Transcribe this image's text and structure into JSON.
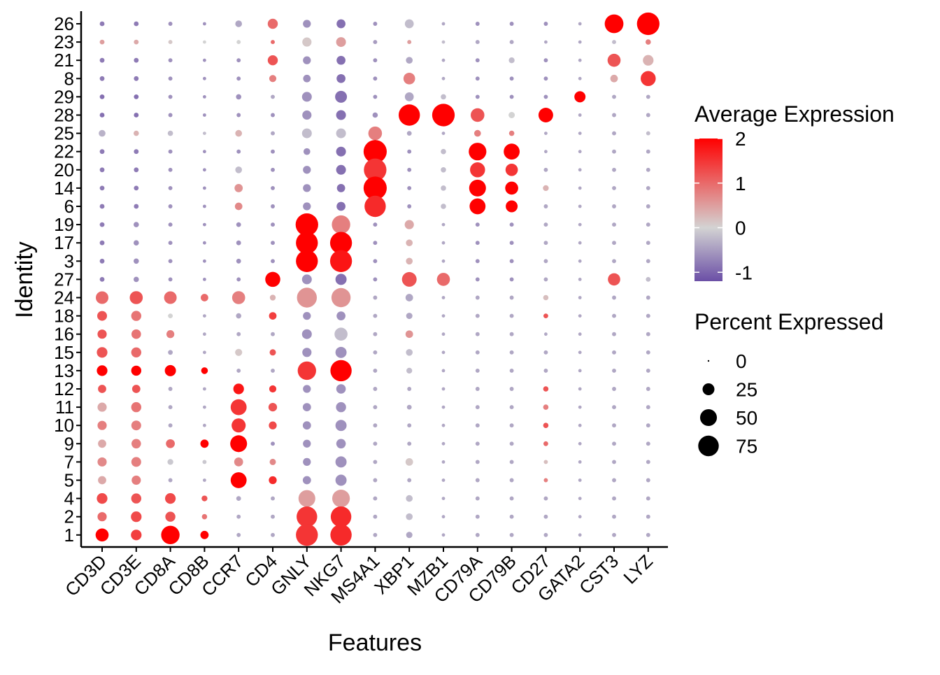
{
  "chart_data": {
    "type": "dot",
    "xlabel": "Features",
    "ylabel": "Identity",
    "features": [
      "CD3D",
      "CD3E",
      "CD8A",
      "CD8B",
      "CCR7",
      "CD4",
      "GNLY",
      "NKG7",
      "MS4A1",
      "XBP1",
      "MZB1",
      "CD79A",
      "CD79B",
      "CD27",
      "GATA2",
      "CST3",
      "LYZ"
    ],
    "identities": [
      "26",
      "23",
      "21",
      "8",
      "29",
      "28",
      "25",
      "22",
      "20",
      "14",
      "6",
      "19",
      "17",
      "3",
      "27",
      "24",
      "18",
      "16",
      "15",
      "13",
      "12",
      "11",
      "10",
      "9",
      "7",
      "5",
      "4",
      "2",
      "1"
    ],
    "avg_expression": [
      [
        -0.8,
        -0.8,
        -0.6,
        -0.6,
        -0.4,
        1.0,
        -0.6,
        -0.9,
        -0.6,
        -0.2,
        -0.4,
        -0.6,
        -0.6,
        -0.6,
        -0.4,
        2.0,
        2.0
      ],
      [
        0.5,
        0.4,
        0.1,
        0.0,
        0.0,
        1.0,
        0.1,
        0.5,
        -0.5,
        0.5,
        -0.2,
        -0.4,
        -0.4,
        -0.4,
        -0.4,
        -0.2,
        0.8
      ],
      [
        -0.8,
        -0.8,
        -0.6,
        -0.6,
        -0.6,
        1.2,
        -0.6,
        -0.9,
        -0.6,
        -0.4,
        -0.4,
        -0.6,
        -0.2,
        -0.6,
        -0.4,
        1.2,
        0.3
      ],
      [
        -0.8,
        -0.8,
        -0.6,
        -0.6,
        -0.6,
        0.8,
        -0.6,
        -0.9,
        -0.6,
        0.8,
        -0.4,
        -0.6,
        -0.6,
        -0.6,
        -0.4,
        0.4,
        1.5
      ],
      [
        -0.9,
        -0.9,
        -0.6,
        -0.6,
        -0.6,
        -0.4,
        -0.6,
        -0.9,
        -0.6,
        -0.4,
        -0.2,
        -0.6,
        -0.6,
        -0.6,
        2.0,
        -0.4,
        -0.4
      ],
      [
        -0.9,
        -0.9,
        -0.6,
        -0.6,
        -0.6,
        -0.6,
        -0.6,
        -0.9,
        -0.6,
        2.0,
        2.0,
        1.2,
        0.0,
        2.0,
        -0.4,
        -0.4,
        -0.4
      ],
      [
        -0.3,
        0.3,
        -0.2,
        -0.2,
        0.3,
        -0.4,
        -0.2,
        -0.2,
        0.8,
        -0.4,
        -0.4,
        0.8,
        0.8,
        -0.4,
        -0.4,
        -0.4,
        -0.2
      ],
      [
        -0.8,
        -0.8,
        -0.6,
        -0.6,
        -0.6,
        -0.6,
        -0.6,
        -0.9,
        2.0,
        -0.6,
        -0.2,
        2.0,
        2.0,
        -0.4,
        -0.4,
        -0.4,
        -0.4
      ],
      [
        -0.8,
        -0.8,
        -0.6,
        -0.6,
        -0.2,
        -0.6,
        -0.6,
        -0.9,
        1.5,
        -0.6,
        -0.2,
        1.5,
        1.5,
        -0.4,
        -0.4,
        -0.4,
        -0.4
      ],
      [
        -0.8,
        -0.8,
        -0.6,
        -0.6,
        0.6,
        -0.6,
        -0.6,
        -0.9,
        2.0,
        -0.6,
        -0.2,
        2.0,
        2.0,
        0.3,
        -0.4,
        -0.4,
        -0.4
      ],
      [
        -0.8,
        -0.8,
        -0.6,
        -0.6,
        0.7,
        -0.6,
        -0.6,
        -0.9,
        1.6,
        -0.6,
        -0.2,
        2.0,
        2.0,
        -0.4,
        -0.4,
        -0.4,
        -0.4
      ],
      [
        -0.8,
        -0.6,
        -0.6,
        -0.6,
        -0.6,
        -0.6,
        2.0,
        0.8,
        -0.6,
        0.4,
        -0.4,
        -0.6,
        -0.6,
        -0.4,
        -0.4,
        -0.4,
        -0.4
      ],
      [
        -0.8,
        -0.6,
        -0.6,
        -0.6,
        -0.6,
        -0.6,
        2.0,
        2.0,
        -0.6,
        0.3,
        -0.4,
        -0.6,
        -0.6,
        -0.4,
        -0.4,
        -0.4,
        -0.4
      ],
      [
        -0.8,
        -0.6,
        -0.6,
        -0.6,
        -0.6,
        -0.6,
        2.0,
        1.8,
        -0.6,
        0.3,
        -0.4,
        -0.6,
        -0.6,
        -0.4,
        -0.4,
        -0.4,
        -0.4
      ],
      [
        -0.8,
        -0.6,
        -0.6,
        -0.6,
        -0.6,
        2.0,
        -0.6,
        -0.9,
        -0.6,
        1.2,
        1.0,
        -0.6,
        -0.6,
        -0.4,
        -0.4,
        1.2,
        -0.2
      ],
      [
        1.0,
        1.2,
        1.0,
        1.0,
        0.8,
        0.3,
        0.6,
        0.6,
        -0.4,
        -0.4,
        -0.4,
        -0.4,
        -0.4,
        0.2,
        -0.4,
        -0.4,
        -0.4
      ],
      [
        1.2,
        0.9,
        0.0,
        -0.4,
        -0.4,
        1.4,
        -0.6,
        -0.6,
        -0.4,
        -0.4,
        -0.4,
        -0.4,
        -0.4,
        1.2,
        -0.4,
        -0.4,
        -0.4
      ],
      [
        1.2,
        0.9,
        0.8,
        -0.4,
        -0.4,
        -0.4,
        -0.6,
        -0.2,
        -0.4,
        0.6,
        -0.4,
        -0.4,
        -0.4,
        -0.4,
        -0.4,
        -0.4,
        -0.4
      ],
      [
        1.2,
        1.0,
        -0.4,
        -0.4,
        0.1,
        1.2,
        -0.6,
        -0.6,
        -0.4,
        -0.2,
        -0.4,
        -0.4,
        -0.4,
        -0.4,
        -0.4,
        -0.4,
        -0.4
      ],
      [
        2.0,
        2.0,
        2.0,
        2.0,
        -0.4,
        -0.4,
        1.5,
        2.0,
        -0.4,
        -0.2,
        -0.4,
        -0.4,
        -0.4,
        -0.4,
        -0.4,
        -0.4,
        -0.4
      ],
      [
        1.2,
        1.2,
        -0.4,
        -0.4,
        1.8,
        1.5,
        -0.6,
        -0.6,
        -0.4,
        -0.4,
        -0.4,
        -0.4,
        -0.4,
        1.2,
        -0.4,
        -0.4,
        -0.4
      ],
      [
        0.4,
        0.9,
        -0.4,
        -0.4,
        1.5,
        1.2,
        -0.6,
        -0.6,
        -0.4,
        -0.4,
        -0.4,
        -0.4,
        -0.4,
        0.8,
        -0.4,
        -0.4,
        -0.4
      ],
      [
        0.8,
        0.8,
        -0.4,
        -0.4,
        1.5,
        1.3,
        -0.6,
        -0.6,
        -0.4,
        -0.4,
        -0.4,
        -0.4,
        -0.4,
        1.2,
        -0.4,
        -0.4,
        -0.4
      ],
      [
        0.4,
        0.8,
        1.0,
        2.0,
        2.0,
        -0.6,
        -0.6,
        -0.6,
        -0.4,
        -0.4,
        -0.4,
        -0.4,
        -0.4,
        1.0,
        -0.4,
        -0.4,
        -0.4
      ],
      [
        0.7,
        0.8,
        -0.1,
        -0.1,
        0.7,
        0.7,
        -0.6,
        -0.6,
        -0.4,
        0.1,
        -0.4,
        -0.4,
        -0.4,
        0.2,
        -0.4,
        -0.4,
        -0.4
      ],
      [
        0.4,
        0.8,
        -0.4,
        -0.4,
        2.0,
        1.6,
        -0.6,
        -0.6,
        -0.4,
        -0.4,
        -0.4,
        -0.4,
        -0.4,
        0.8,
        -0.4,
        -0.4,
        -0.4
      ],
      [
        1.3,
        1.2,
        1.3,
        1.2,
        -0.4,
        -0.4,
        0.5,
        0.5,
        -0.4,
        -0.2,
        -0.4,
        -0.4,
        -0.4,
        -0.4,
        -0.4,
        -0.4,
        -0.4
      ],
      [
        1.0,
        1.3,
        1.2,
        0.9,
        -0.4,
        -0.4,
        1.5,
        1.6,
        -0.4,
        -0.2,
        -0.4,
        -0.4,
        -0.4,
        -0.4,
        -0.4,
        -0.4,
        -0.4
      ],
      [
        2.0,
        1.4,
        2.0,
        2.0,
        -0.4,
        -0.4,
        1.5,
        1.6,
        -0.4,
        -0.4,
        -0.4,
        -0.4,
        -0.4,
        -0.4,
        -0.4,
        -0.4,
        -0.4
      ]
    ],
    "pct_expressed": [
      [
        4,
        4,
        3,
        2,
        8,
        18,
        11,
        14,
        3,
        14,
        2,
        3,
        3,
        3,
        2,
        62,
        90
      ],
      [
        4,
        4,
        3,
        2,
        3,
        3,
        15,
        17,
        3,
        3,
        2,
        3,
        3,
        2,
        2,
        3,
        5
      ],
      [
        4,
        4,
        3,
        2,
        3,
        18,
        11,
        14,
        3,
        8,
        2,
        3,
        6,
        3,
        2,
        30,
        20
      ],
      [
        4,
        4,
        3,
        2,
        3,
        9,
        10,
        14,
        3,
        24,
        2,
        3,
        3,
        3,
        2,
        10,
        40
      ],
      [
        4,
        4,
        3,
        2,
        5,
        3,
        17,
        25,
        3,
        14,
        5,
        3,
        3,
        3,
        22,
        3,
        3
      ],
      [
        4,
        4,
        3,
        2,
        3,
        3,
        15,
        17,
        5,
        80,
        90,
        33,
        7,
        38,
        2,
        3,
        3
      ],
      [
        8,
        5,
        5,
        2,
        8,
        3,
        17,
        17,
        33,
        4,
        2,
        8,
        5,
        2,
        2,
        3,
        3
      ],
      [
        4,
        4,
        3,
        2,
        3,
        3,
        8,
        17,
        95,
        3,
        5,
        55,
        45,
        2,
        2,
        3,
        3
      ],
      [
        4,
        4,
        3,
        2,
        8,
        3,
        11,
        17,
        90,
        3,
        5,
        40,
        27,
        3,
        2,
        3,
        3
      ],
      [
        4,
        4,
        3,
        2,
        12,
        3,
        11,
        12,
        95,
        3,
        5,
        50,
        30,
        6,
        2,
        3,
        3
      ],
      [
        4,
        4,
        3,
        2,
        10,
        3,
        11,
        14,
        80,
        3,
        5,
        45,
        25,
        3,
        2,
        3,
        3
      ],
      [
        4,
        5,
        3,
        2,
        4,
        3,
        90,
        60,
        3,
        15,
        2,
        3,
        3,
        3,
        2,
        3,
        3
      ],
      [
        4,
        5,
        3,
        2,
        4,
        3,
        85,
        85,
        3,
        8,
        2,
        3,
        3,
        3,
        2,
        3,
        3
      ],
      [
        4,
        5,
        3,
        2,
        4,
        3,
        85,
        85,
        3,
        8,
        2,
        3,
        3,
        3,
        2,
        3,
        3
      ],
      [
        4,
        5,
        3,
        2,
        3,
        40,
        17,
        22,
        3,
        38,
        30,
        3,
        3,
        3,
        2,
        27,
        4
      ],
      [
        28,
        30,
        28,
        10,
        30,
        6,
        70,
        65,
        3,
        10,
        2,
        3,
        3,
        5,
        2,
        3,
        3
      ],
      [
        17,
        18,
        4,
        2,
        5,
        10,
        11,
        14,
        3,
        7,
        2,
        3,
        3,
        4,
        2,
        3,
        3
      ],
      [
        15,
        16,
        11,
        2,
        3,
        3,
        17,
        30,
        3,
        10,
        2,
        3,
        3,
        2,
        2,
        3,
        3
      ],
      [
        20,
        18,
        4,
        2,
        9,
        7,
        15,
        22,
        3,
        8,
        2,
        3,
        3,
        3,
        2,
        3,
        3
      ],
      [
        20,
        18,
        22,
        8,
        3,
        3,
        60,
        80,
        3,
        6,
        2,
        3,
        3,
        3,
        2,
        3,
        3
      ],
      [
        12,
        12,
        3,
        2,
        20,
        9,
        11,
        16,
        3,
        3,
        2,
        3,
        3,
        5,
        2,
        3,
        3
      ],
      [
        15,
        18,
        3,
        2,
        45,
        13,
        12,
        18,
        3,
        4,
        2,
        3,
        3,
        5,
        2,
        3,
        3
      ],
      [
        15,
        17,
        3,
        2,
        35,
        11,
        12,
        22,
        3,
        3,
        2,
        3,
        3,
        5,
        2,
        3,
        3
      ],
      [
        12,
        16,
        14,
        12,
        50,
        3,
        11,
        16,
        3,
        3,
        2,
        3,
        3,
        4,
        2,
        3,
        3
      ],
      [
        15,
        17,
        6,
        3,
        14,
        7,
        11,
        22,
        3,
        10,
        2,
        3,
        3,
        3,
        2,
        3,
        3
      ],
      [
        12,
        15,
        3,
        2,
        45,
        11,
        12,
        22,
        3,
        3,
        2,
        3,
        3,
        3,
        2,
        3,
        3
      ],
      [
        20,
        18,
        20,
        6,
        4,
        3,
        50,
        55,
        3,
        8,
        2,
        3,
        3,
        3,
        2,
        3,
        3
      ],
      [
        15,
        20,
        18,
        5,
        3,
        3,
        75,
        75,
        3,
        8,
        2,
        3,
        3,
        3,
        2,
        3,
        3
      ],
      [
        30,
        20,
        60,
        12,
        3,
        3,
        85,
        80,
        3,
        7,
        2,
        3,
        3,
        3,
        2,
        3,
        3
      ]
    ],
    "legend_color": {
      "title": "Average Expression",
      "ticks": [
        2,
        1,
        0,
        -1
      ],
      "min": -1.2,
      "max": 2,
      "low_color": "#6B4FA6",
      "mid_color": "#D3D3D3",
      "high_color": "#FF0000"
    },
    "legend_size": {
      "title": "Percent Expressed",
      "values": [
        0,
        25,
        50,
        75
      ]
    },
    "placement": "right"
  }
}
